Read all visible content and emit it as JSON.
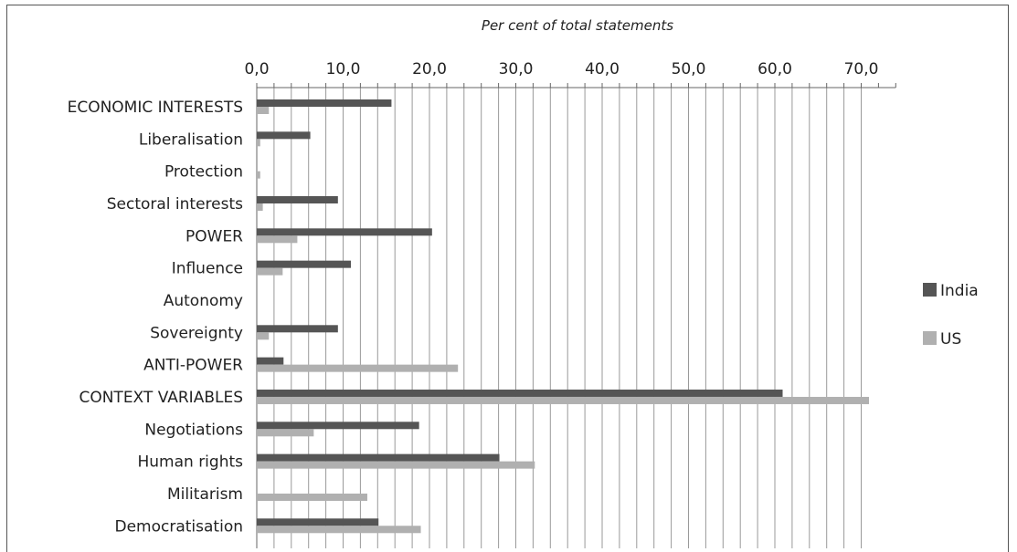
{
  "chart_data": {
    "type": "bar",
    "orientation": "horizontal",
    "title": "Per cent of total statements",
    "categories": [
      "ECONOMIC INTERESTS",
      "Liberalisation",
      "Protection",
      "Sectoral interests",
      "POWER",
      "Influence",
      "Autonomy",
      "Sovereignty",
      "ANTI-POWER",
      "CONTEXT VARIABLES",
      "Negotiations",
      "Human rights",
      "Militarism",
      "Democratisation"
    ],
    "series": [
      {
        "name": "India",
        "color": "#555555",
        "values": [
          15.6,
          6.2,
          0.0,
          9.4,
          20.3,
          10.9,
          0.0,
          9.4,
          3.1,
          60.9,
          18.8,
          28.1,
          0.0,
          14.1
        ]
      },
      {
        "name": "US",
        "color": "#b0b0b0",
        "values": [
          1.4,
          0.4,
          0.4,
          0.7,
          4.7,
          3.0,
          0.0,
          1.4,
          23.3,
          70.9,
          6.6,
          32.2,
          12.8,
          19.0
        ]
      }
    ],
    "x_ticks": [
      "0,0",
      "10,0",
      "20,0",
      "30,0",
      "40,0",
      "50,0",
      "60,0",
      "70,0"
    ],
    "xlim": [
      0,
      74
    ],
    "grid": true,
    "x_axis_position": "top",
    "legend_position": "right"
  }
}
